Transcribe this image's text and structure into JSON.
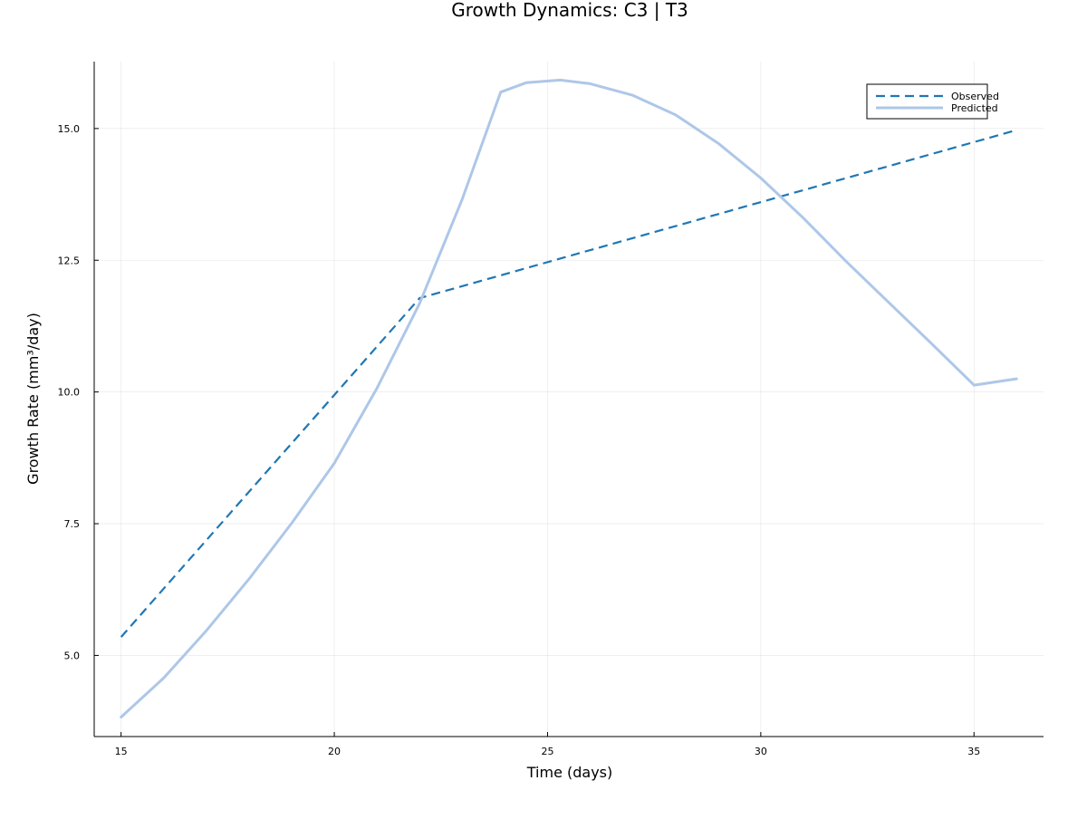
{
  "chart_data": {
    "type": "line",
    "title": "Growth Dynamics: C3 | T3",
    "xlabel": "Time (days)",
    "ylabel": "Growth Rate (mm³/day)",
    "xlim": [
      14.37,
      36.63
    ],
    "ylim": [
      3.46,
      16.27
    ],
    "x_ticks": [
      15,
      20,
      25,
      30,
      35
    ],
    "x_tick_labels": [
      "15",
      "20",
      "25",
      "30",
      "35"
    ],
    "y_ticks": [
      5.0,
      7.5,
      10.0,
      12.5,
      15.0
    ],
    "y_tick_labels": [
      "5.0",
      "7.5",
      "10.0",
      "12.5",
      "15.0"
    ],
    "grid": true,
    "legend_position": "top-right",
    "series": [
      {
        "name": "Observed",
        "color": "#1f77b4",
        "style": "dashed",
        "x": [
          15,
          22,
          36
        ],
        "y": [
          5.35,
          11.78,
          14.97
        ]
      },
      {
        "name": "Predicted",
        "color": "#aec7e8",
        "style": "solid",
        "x": [
          15,
          16,
          17,
          18,
          19,
          20,
          21,
          22,
          23,
          23.9,
          24.5,
          25.3,
          26,
          27,
          28,
          29,
          30,
          31,
          32,
          33,
          34,
          35,
          36
        ],
        "y": [
          3.83,
          4.57,
          5.47,
          6.45,
          7.51,
          8.65,
          10.07,
          11.68,
          13.66,
          15.69,
          15.87,
          15.92,
          15.85,
          15.63,
          15.26,
          14.72,
          14.06,
          13.3,
          12.48,
          11.7,
          10.92,
          10.13,
          10.25
        ]
      }
    ]
  }
}
